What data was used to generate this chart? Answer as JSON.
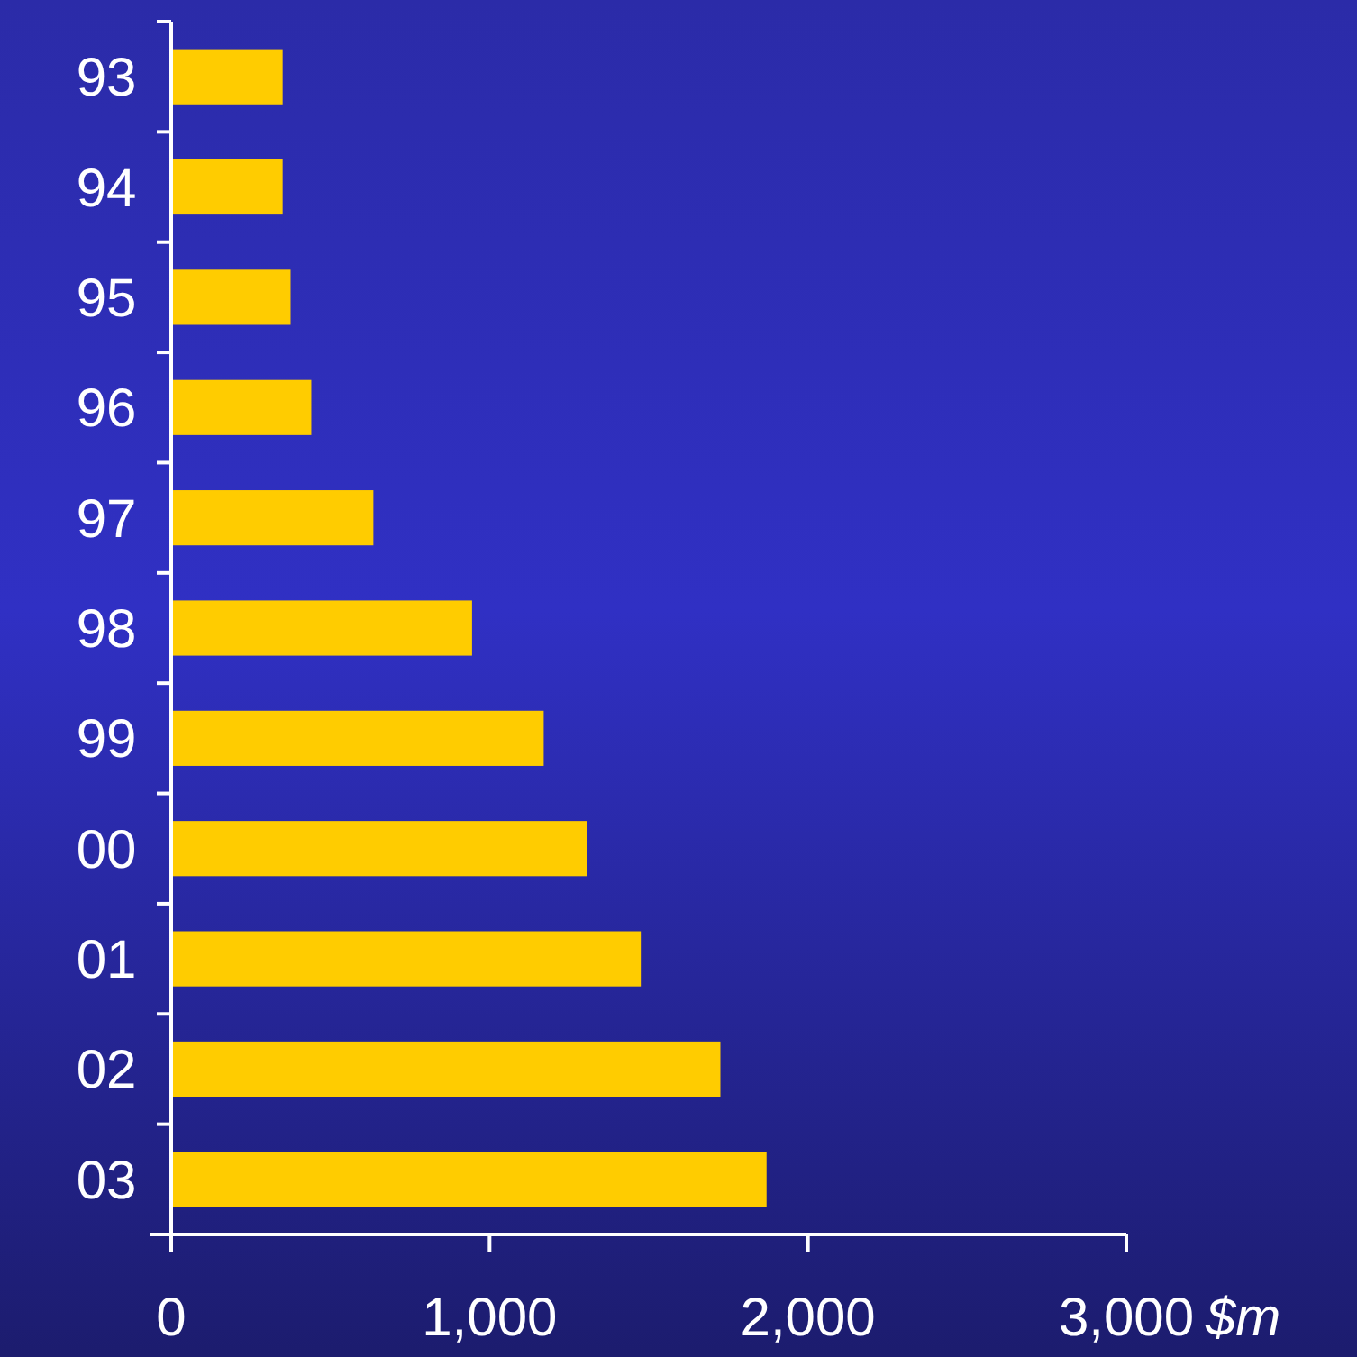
{
  "chart_data": {
    "type": "bar",
    "orientation": "horizontal",
    "categories": [
      "93",
      "94",
      "95",
      "96",
      "97",
      "98",
      "99",
      "00",
      "01",
      "02",
      "03"
    ],
    "values": [
      350,
      350,
      375,
      440,
      635,
      945,
      1170,
      1305,
      1475,
      1725,
      1870
    ],
    "color": "#ffcc00",
    "xlabel": "$m",
    "xlim": [
      0,
      3000
    ],
    "xticks": [
      {
        "value": 0,
        "label": "0"
      },
      {
        "value": 1000,
        "label": "1,000"
      },
      {
        "value": 2000,
        "label": "2,000"
      },
      {
        "value": 3000,
        "label": "3,000"
      }
    ],
    "grid": false
  }
}
